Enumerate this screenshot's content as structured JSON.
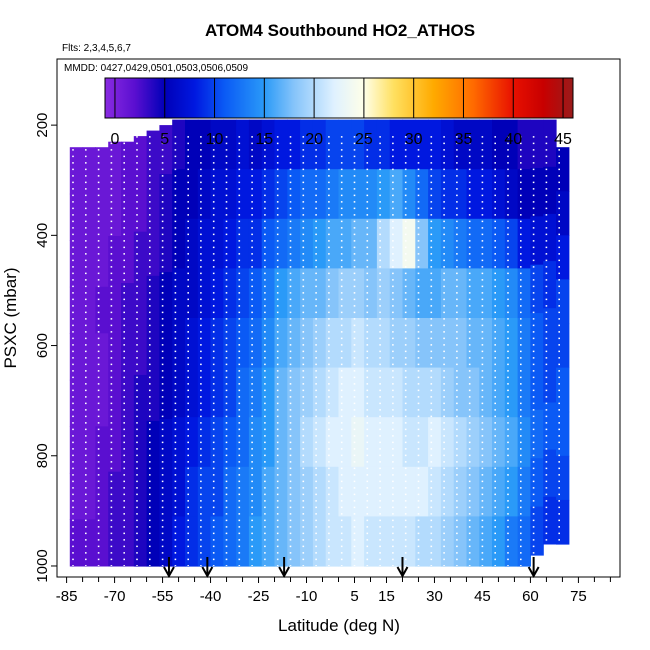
{
  "chart_data": {
    "type": "heatmap",
    "title": "ATOM4 Southbound HO2_ATHOS",
    "flights_note": "Flts: 2,3,4,5,6,7",
    "dates_note": "MMDD: 0427,0429,0501,0503,0506,0509",
    "xlabel": "Latitude (deg N)",
    "ylabel": "PSXC (mbar)",
    "xlim": [
      -88,
      88
    ],
    "ylim": [
      1020,
      80
    ],
    "x_ticks": [
      -85,
      -70,
      -55,
      -40,
      -25,
      -10,
      5,
      15,
      30,
      45,
      60,
      75
    ],
    "x_minor_ticks": [
      -80,
      -75,
      -65,
      -60,
      -50,
      -45,
      -35,
      -30,
      -20,
      -15,
      -5,
      0,
      10,
      20,
      25,
      35,
      40,
      50,
      55,
      65,
      70,
      80,
      85
    ],
    "y_ticks": [
      200,
      400,
      600,
      800,
      1000
    ],
    "colorbar": {
      "min": -1,
      "max": 46,
      "ticks": [
        0,
        5,
        10,
        15,
        20,
        25,
        30,
        35,
        40,
        45
      ],
      "stops": [
        {
          "v": -1,
          "c": "#8a2be2"
        },
        {
          "v": 2,
          "c": "#5a0fd0"
        },
        {
          "v": 5,
          "c": "#0000b8"
        },
        {
          "v": 8,
          "c": "#0018e0"
        },
        {
          "v": 11,
          "c": "#0a5af5"
        },
        {
          "v": 15,
          "c": "#2a9af8"
        },
        {
          "v": 18,
          "c": "#86c4fa"
        },
        {
          "v": 22,
          "c": "#dff1ff"
        },
        {
          "v": 25,
          "c": "#ffffe8"
        },
        {
          "v": 28,
          "c": "#ffe060"
        },
        {
          "v": 32,
          "c": "#ffaa00"
        },
        {
          "v": 36,
          "c": "#ff6a00"
        },
        {
          "v": 40,
          "c": "#e81000"
        },
        {
          "v": 43,
          "c": "#c80000"
        },
        {
          "v": 46,
          "c": "#9a1b1b"
        }
      ]
    },
    "columns": [
      {
        "lat": -82,
        "p_top": 240,
        "p_bot": 1000,
        "values": [
          1,
          1,
          1,
          1,
          1,
          1,
          1,
          1,
          2
        ]
      },
      {
        "lat": -78,
        "p_top": 240,
        "p_bot": 1000,
        "values": [
          1,
          1,
          1,
          1,
          1,
          1,
          1,
          1,
          2
        ]
      },
      {
        "lat": -74,
        "p_top": 240,
        "p_bot": 1000,
        "values": [
          1,
          1,
          1,
          2,
          1,
          1,
          2,
          2,
          2
        ]
      },
      {
        "lat": -70,
        "p_top": 230,
        "p_bot": 1000,
        "values": [
          1,
          1,
          2,
          2,
          2,
          2,
          2,
          3,
          3
        ]
      },
      {
        "lat": -66,
        "p_top": 230,
        "p_bot": 1000,
        "values": [
          2,
          2,
          2,
          3,
          3,
          3,
          3,
          3,
          3
        ]
      },
      {
        "lat": -62,
        "p_top": 220,
        "p_bot": 1000,
        "values": [
          2,
          2,
          3,
          3,
          3,
          4,
          4,
          4,
          4
        ]
      },
      {
        "lat": -58,
        "p_top": 210,
        "p_bot": 1000,
        "values": [
          3,
          3,
          3,
          4,
          4,
          4,
          5,
          5,
          5
        ]
      },
      {
        "lat": -54,
        "p_top": 200,
        "p_bot": 1000,
        "values": [
          3,
          4,
          4,
          5,
          5,
          5,
          6,
          6,
          6
        ]
      },
      {
        "lat": -50,
        "p_top": 190,
        "p_bot": 1000,
        "values": [
          4,
          5,
          5,
          6,
          6,
          6,
          7,
          7,
          8
        ]
      },
      {
        "lat": -46,
        "p_top": 190,
        "p_bot": 1000,
        "values": [
          5,
          5,
          6,
          6,
          7,
          7,
          8,
          9,
          9
        ]
      },
      {
        "lat": -42,
        "p_top": 190,
        "p_bot": 1000,
        "values": [
          5,
          6,
          7,
          7,
          8,
          8,
          9,
          10,
          10
        ]
      },
      {
        "lat": -38,
        "p_top": 190,
        "p_bot": 1000,
        "values": [
          6,
          7,
          7,
          8,
          9,
          9,
          10,
          10,
          11
        ]
      },
      {
        "lat": -34,
        "p_top": 190,
        "p_bot": 1000,
        "values": [
          6,
          7,
          8,
          9,
          10,
          10,
          11,
          12,
          12
        ]
      },
      {
        "lat": -30,
        "p_top": 190,
        "p_bot": 1000,
        "values": [
          7,
          8,
          9,
          10,
          11,
          12,
          12,
          13,
          13
        ]
      },
      {
        "lat": -26,
        "p_top": 190,
        "p_bot": 1000,
        "values": [
          6,
          8,
          9,
          11,
          12,
          13,
          14,
          14,
          15
        ]
      },
      {
        "lat": -22,
        "p_top": 190,
        "p_bot": 1000,
        "values": [
          7,
          9,
          11,
          13,
          14,
          15,
          15,
          16,
          16
        ]
      },
      {
        "lat": -18,
        "p_top": 190,
        "p_bot": 1000,
        "values": [
          8,
          10,
          12,
          15,
          16,
          17,
          17,
          17,
          17
        ]
      },
      {
        "lat": -14,
        "p_top": 190,
        "p_bot": 1000,
        "values": [
          8,
          11,
          13,
          16,
          17,
          18,
          18,
          18,
          18
        ]
      },
      {
        "lat": -10,
        "p_top": 190,
        "p_bot": 1000,
        "values": [
          9,
          12,
          14,
          17,
          18,
          19,
          20,
          19,
          19
        ]
      },
      {
        "lat": -6,
        "p_top": 190,
        "p_bot": 1000,
        "values": [
          9,
          12,
          15,
          17,
          19,
          20,
          21,
          20,
          20
        ]
      },
      {
        "lat": -2,
        "p_top": 190,
        "p_bot": 1000,
        "values": [
          10,
          13,
          16,
          18,
          20,
          21,
          22,
          21,
          21
        ]
      },
      {
        "lat": 2,
        "p_top": 190,
        "p_bot": 1000,
        "values": [
          10,
          14,
          16,
          19,
          20,
          22,
          22,
          22,
          21
        ]
      },
      {
        "lat": 6,
        "p_top": 190,
        "p_bot": 1000,
        "values": [
          10,
          14,
          17,
          19,
          21,
          22,
          23,
          22,
          22
        ]
      },
      {
        "lat": 10,
        "p_top": 190,
        "p_bot": 1000,
        "values": [
          9,
          14,
          17,
          18,
          20,
          21,
          22,
          22,
          21
        ]
      },
      {
        "lat": 14,
        "p_top": 190,
        "p_bot": 1000,
        "values": [
          9,
          15,
          20,
          19,
          20,
          21,
          22,
          22,
          21
        ]
      },
      {
        "lat": 18,
        "p_top": 190,
        "p_bot": 1000,
        "values": [
          8,
          16,
          22,
          18,
          19,
          21,
          22,
          22,
          21
        ]
      },
      {
        "lat": 22,
        "p_top": 190,
        "p_bot": 1000,
        "values": [
          8,
          14,
          24,
          17,
          19,
          20,
          21,
          22,
          21
        ]
      },
      {
        "lat": 26,
        "p_top": 190,
        "p_bot": 1000,
        "values": [
          8,
          12,
          18,
          16,
          18,
          20,
          21,
          22,
          20
        ]
      },
      {
        "lat": 30,
        "p_top": 190,
        "p_bot": 1000,
        "values": [
          8,
          10,
          15,
          16,
          18,
          20,
          22,
          21,
          20
        ]
      },
      {
        "lat": 34,
        "p_top": 190,
        "p_bot": 1000,
        "values": [
          7,
          9,
          14,
          17,
          18,
          19,
          21,
          20,
          19
        ]
      },
      {
        "lat": 38,
        "p_top": 190,
        "p_bot": 1000,
        "values": [
          6,
          9,
          13,
          17,
          18,
          18,
          20,
          19,
          18
        ]
      },
      {
        "lat": 42,
        "p_top": 190,
        "p_bot": 1000,
        "values": [
          6,
          8,
          12,
          16,
          17,
          18,
          19,
          18,
          17
        ]
      },
      {
        "lat": 46,
        "p_top": 190,
        "p_bot": 1000,
        "values": [
          6,
          8,
          12,
          16,
          17,
          17,
          18,
          17,
          16
        ]
      },
      {
        "lat": 50,
        "p_top": 190,
        "p_bot": 1000,
        "values": [
          5,
          7,
          11,
          15,
          16,
          16,
          17,
          16,
          15
        ]
      },
      {
        "lat": 54,
        "p_top": 190,
        "p_bot": 1000,
        "values": [
          5,
          6,
          10,
          14,
          15,
          15,
          16,
          15,
          13
        ]
      },
      {
        "lat": 58,
        "p_top": 190,
        "p_bot": 1000,
        "values": [
          4,
          5,
          8,
          12,
          13,
          13,
          14,
          13,
          12
        ]
      },
      {
        "lat": 62,
        "p_top": 190,
        "p_bot": 980,
        "values": [
          4,
          5,
          7,
          10,
          11,
          11,
          12,
          11,
          10
        ]
      },
      {
        "lat": 66,
        "p_top": 190,
        "p_bot": 960,
        "values": [
          4,
          5,
          7,
          9,
          10,
          10,
          11,
          10,
          9
        ]
      },
      {
        "lat": 70,
        "p_top": 240,
        "p_bot": 960,
        "values": [
          5,
          6,
          8,
          10,
          10,
          11,
          11,
          10,
          9
        ]
      }
    ],
    "profile_latitudes": [
      -83,
      -79,
      -75,
      -71,
      -67,
      -63,
      -59,
      -55,
      -51,
      -47,
      -43,
      -39,
      -35,
      -31,
      -27,
      -23,
      -19,
      -15,
      -11,
      -7,
      -3,
      1,
      5,
      9,
      13,
      17,
      21,
      25,
      29,
      33,
      37,
      41,
      45,
      49,
      53,
      57,
      61,
      65,
      69
    ],
    "arrow_latitudes": [
      -53,
      -41,
      -17,
      20,
      61
    ]
  }
}
